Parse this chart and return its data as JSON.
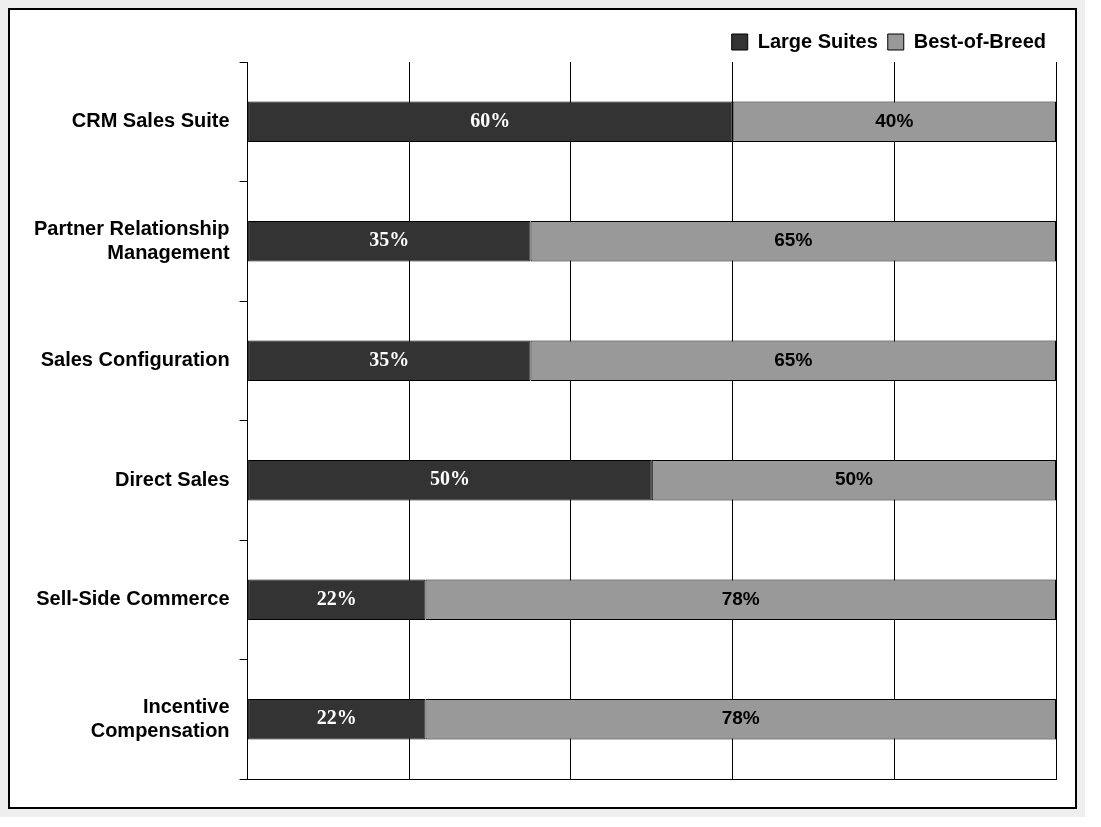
{
  "chart_data": {
    "type": "bar",
    "orientation": "horizontal",
    "stacked": true,
    "categories": [
      "CRM Sales Suite",
      "Partner Relationship Management",
      "Sales Configuration",
      "Direct Sales",
      "Sell-Side Commerce",
      "Incentive Compensation"
    ],
    "series": [
      {
        "name": "Large Suites",
        "color": "#333333",
        "values": [
          60,
          35,
          35,
          50,
          22,
          22
        ],
        "value_labels": [
          "60%",
          "35%",
          "35%",
          "50%",
          "22%",
          "22%"
        ]
      },
      {
        "name": "Best-of-Breed",
        "color": "#999999",
        "values": [
          40,
          65,
          65,
          50,
          78,
          78
        ],
        "value_labels": [
          "40%",
          "65%",
          "65%",
          "50%",
          "78%",
          "78%"
        ]
      }
    ],
    "grid": "x",
    "legend": "top right",
    "tick_labels": "y"
  }
}
